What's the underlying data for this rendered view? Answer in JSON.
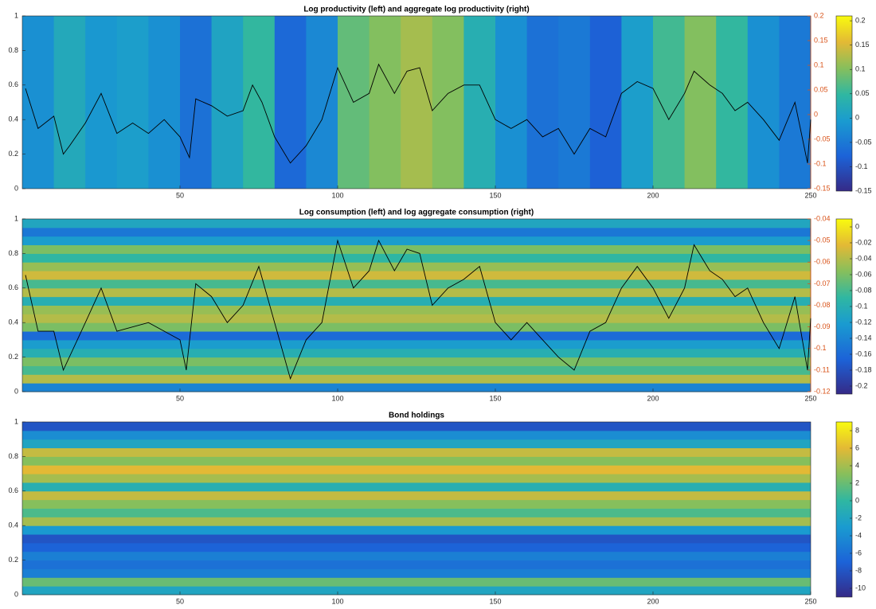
{
  "chart_data": [
    {
      "type": "heatmap",
      "title": "Log productivity (left) and aggregate log productivity (right)",
      "xlim": [
        0,
        250
      ],
      "xticks": [
        50,
        100,
        150,
        200,
        250
      ],
      "ylim": [
        0,
        1
      ],
      "yticks": [
        0,
        0.2,
        0.4,
        0.6,
        0.8,
        1
      ],
      "y2lim": [
        -0.15,
        0.2
      ],
      "y2ticks": [
        -0.15,
        -0.1,
        -0.05,
        0,
        0.05,
        0.1,
        0.15,
        0.2
      ],
      "y2color": "#d95319",
      "heatmap_columns": [
        -0.02,
        0.02,
        -0.01,
        0.0,
        -0.02,
        -0.06,
        0.01,
        0.05,
        -0.07,
        -0.03,
        0.08,
        0.1,
        0.12,
        0.1,
        0.03,
        -0.02,
        -0.06,
        -0.05,
        -0.08,
        0.0,
        0.06,
        0.1,
        0.05,
        -0.02,
        -0.05
      ],
      "clim": [
        -0.15,
        0.21
      ],
      "cticks": [
        -0.15,
        -0.1,
        -0.05,
        0,
        0.05,
        0.1,
        0.15,
        0.2
      ],
      "series": [
        {
          "color": "#000000",
          "axis": "y2",
          "x": [
            1,
            5,
            10,
            13,
            15,
            20,
            25,
            30,
            35,
            40,
            45,
            50,
            53,
            55,
            60,
            65,
            70,
            73,
            76,
            80,
            85,
            90,
            95,
            100,
            105,
            110,
            113,
            118,
            122,
            126,
            130,
            135,
            140,
            145,
            150,
            155,
            160,
            165,
            170,
            175,
            180,
            185,
            190,
            195,
            200,
            205,
            210,
            213,
            218,
            222,
            226,
            230,
            235,
            240,
            245,
            249,
            250
          ],
          "values": [
            0.053,
            -0.028,
            -0.003,
            -0.08,
            -0.063,
            -0.017,
            0.043,
            -0.038,
            -0.017,
            -0.038,
            -0.01,
            -0.045,
            -0.087,
            0.032,
            0.018,
            -0.003,
            0.008,
            0.06,
            0.025,
            -0.045,
            -0.098,
            -0.063,
            -0.01,
            0.095,
            0.025,
            0.043,
            0.102,
            0.043,
            0.088,
            0.095,
            0.008,
            0.043,
            0.06,
            0.06,
            -0.01,
            -0.028,
            -0.01,
            -0.045,
            -0.028,
            -0.08,
            -0.028,
            -0.045,
            0.043,
            0.067,
            0.053,
            -0.01,
            0.043,
            0.088,
            0.06,
            0.043,
            0.008,
            0.025,
            -0.01,
            -0.052,
            0.025,
            -0.098,
            -0.01
          ]
        }
      ]
    },
    {
      "type": "heatmap",
      "title": "Log consumption (left) and log aggregate consumption (right)",
      "xlim": [
        0,
        250
      ],
      "xticks": [
        50,
        100,
        150,
        200,
        250
      ],
      "ylim": [
        0,
        1
      ],
      "yticks": [
        0,
        0.2,
        0.4,
        0.6,
        0.8,
        1
      ],
      "y2lim": [
        -0.12,
        -0.04
      ],
      "y2ticks": [
        -0.12,
        -0.11,
        -0.1,
        -0.09,
        -0.08,
        -0.07,
        -0.06,
        -0.05,
        -0.04
      ],
      "y2color": "#d95319",
      "heatmap_rows": [
        -0.14,
        -0.04,
        -0.08,
        -0.06,
        -0.1,
        -0.12,
        -0.16,
        -0.06,
        -0.04,
        -0.05,
        -0.1,
        -0.04,
        -0.08,
        -0.03,
        -0.05,
        -0.09,
        -0.06,
        -0.12,
        -0.15,
        -0.11
      ],
      "clim": [
        -0.21,
        0.01
      ],
      "cticks": [
        -0.2,
        -0.18,
        -0.16,
        -0.14,
        -0.12,
        -0.1,
        -0.08,
        -0.06,
        -0.04,
        -0.02,
        0
      ],
      "series": [
        {
          "color": "#000000",
          "axis": "y2",
          "x": [
            1,
            5,
            10,
            13,
            20,
            25,
            30,
            40,
            50,
            52,
            55,
            60,
            65,
            70,
            75,
            80,
            85,
            90,
            95,
            100,
            105,
            110,
            113,
            118,
            122,
            126,
            130,
            135,
            140,
            145,
            150,
            155,
            160,
            165,
            170,
            175,
            180,
            185,
            190,
            195,
            200,
            205,
            210,
            213,
            218,
            222,
            226,
            230,
            235,
            240,
            245,
            249,
            250
          ],
          "values": [
            -0.066,
            -0.092,
            -0.092,
            -0.11,
            -0.088,
            -0.072,
            -0.092,
            -0.088,
            -0.096,
            -0.11,
            -0.07,
            -0.076,
            -0.088,
            -0.08,
            -0.062,
            -0.088,
            -0.114,
            -0.096,
            -0.088,
            -0.05,
            -0.072,
            -0.064,
            -0.05,
            -0.064,
            -0.054,
            -0.056,
            -0.08,
            -0.072,
            -0.068,
            -0.062,
            -0.088,
            -0.096,
            -0.088,
            -0.096,
            -0.104,
            -0.11,
            -0.092,
            -0.088,
            -0.072,
            -0.062,
            -0.072,
            -0.086,
            -0.072,
            -0.052,
            -0.064,
            -0.068,
            -0.076,
            -0.072,
            -0.088,
            -0.1,
            -0.076,
            -0.11,
            -0.086
          ]
        }
      ]
    },
    {
      "type": "heatmap",
      "title": "Bond holdings",
      "xlim": [
        0,
        250
      ],
      "xticks": [
        50,
        100,
        150,
        200,
        250
      ],
      "ylim": [
        0,
        1
      ],
      "yticks": [
        0,
        0.2,
        0.4,
        0.6,
        0.8,
        1
      ],
      "heatmap_rows": [
        -2,
        2,
        -5,
        -6,
        -5,
        -7,
        -8,
        -3,
        4,
        1,
        3,
        5,
        -1,
        4,
        6,
        3,
        5,
        -2,
        -4,
        -8
      ],
      "clim": [
        -11,
        9
      ],
      "cticks": [
        -10,
        -8,
        -6,
        -4,
        -2,
        0,
        2,
        4,
        6,
        8
      ],
      "series": []
    }
  ]
}
